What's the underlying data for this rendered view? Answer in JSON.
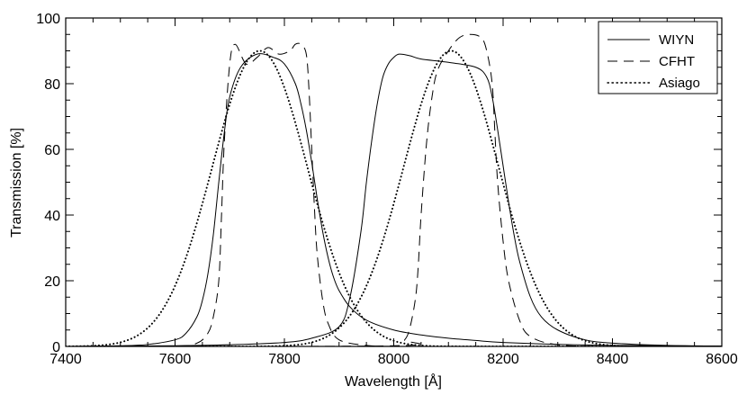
{
  "chart_data": {
    "type": "line",
    "title": "",
    "xlabel": "Wavelength [Å]",
    "ylabel": "Transmission [%]",
    "xlim": [
      7400,
      8600
    ],
    "ylim": [
      0,
      100
    ],
    "xticks": [
      7400,
      7600,
      7800,
      8000,
      8200,
      8400,
      8600
    ],
    "yticks": [
      0,
      20,
      40,
      60,
      80,
      100
    ],
    "grid": false,
    "legend_position": "top-right",
    "legend": [
      "WIYN",
      "CFHT",
      "Asiago"
    ],
    "series": [
      {
        "name": "WIYN",
        "style": "solid",
        "x": [
          7400,
          7500,
          7550,
          7600,
          7620,
          7640,
          7650,
          7660,
          7670,
          7680,
          7690,
          7700,
          7720,
          7750,
          7780,
          7800,
          7820,
          7830,
          7840,
          7850,
          7860,
          7870,
          7880,
          7890,
          7900,
          7920,
          7950,
          8000,
          8050,
          8100,
          8150,
          8200,
          8300,
          8400,
          8500,
          8600
        ],
        "y": [
          0,
          0.2,
          0.6,
          2,
          4,
          9,
          14,
          22,
          34,
          50,
          65,
          76,
          85,
          89,
          88,
          86,
          80,
          74,
          66,
          56,
          45,
          35,
          27,
          21,
          17,
          12,
          8,
          5,
          3.5,
          2.5,
          1.8,
          1.2,
          0.6,
          0.3,
          0.2,
          0.1
        ]
      },
      {
        "name": "WIYN",
        "style": "solid",
        "x": [
          7400,
          7600,
          7700,
          7800,
          7850,
          7900,
          7920,
          7940,
          7950,
          7960,
          7970,
          7980,
          7990,
          8000,
          8010,
          8030,
          8050,
          8100,
          8150,
          8170,
          8180,
          8190,
          8200,
          8210,
          8220,
          8230,
          8250,
          8270,
          8300,
          8350,
          8400,
          8500,
          8600
        ],
        "y": [
          0,
          0.2,
          0.5,
          1.2,
          2.5,
          6,
          15,
          35,
          50,
          63,
          74,
          82,
          86,
          88,
          89,
          88.5,
          87.5,
          86.5,
          85,
          82,
          76,
          66,
          55,
          44,
          34,
          26,
          15,
          9,
          5,
          2,
          1,
          0.3,
          0.1
        ]
      },
      {
        "name": "CFHT",
        "style": "dashed",
        "x": [
          7400,
          7600,
          7640,
          7660,
          7670,
          7680,
          7685,
          7690,
          7700,
          7710,
          7730,
          7750,
          7770,
          7790,
          7810,
          7820,
          7830,
          7840,
          7845,
          7850,
          7855,
          7860,
          7870,
          7880,
          7900,
          7950,
          8000
        ],
        "y": [
          0,
          0.1,
          1,
          4,
          9,
          20,
          40,
          62,
          86,
          92,
          86,
          88,
          91,
          89,
          90,
          92,
          92,
          89,
          78,
          60,
          42,
          28,
          14,
          7,
          2,
          0.3,
          0
        ],
        "x2": [
          7400,
          8000,
          8020,
          8030,
          8040,
          8045,
          8050,
          8060,
          8070,
          8080,
          8100,
          8120,
          8140,
          8160,
          8170,
          8180,
          8185,
          8190,
          8200,
          8210,
          8230,
          8250,
          8300,
          8400,
          8600
        ],
        "y2": [
          0,
          0.2,
          2,
          6,
          15,
          25,
          40,
          62,
          76,
          84,
          90,
          94,
          95,
          94,
          90,
          80,
          65,
          50,
          32,
          20,
          8,
          3,
          0.5,
          0,
          0
        ]
      },
      {
        "name": "Asiago",
        "style": "dotted",
        "center": [
          7755,
          8105
        ],
        "peak": [
          90,
          90
        ],
        "fwhm": 205
      }
    ]
  }
}
